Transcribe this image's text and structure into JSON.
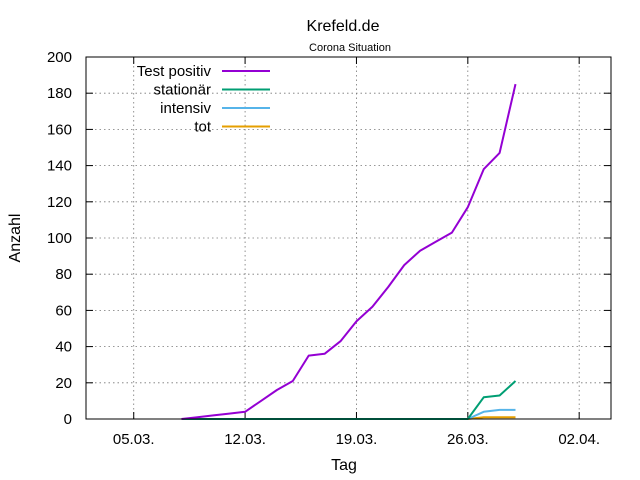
{
  "chart_data": {
    "type": "line",
    "title": "Krefeld.de",
    "subtitle": "Corona Situation",
    "xlabel": "Tag",
    "ylabel": "Anzahl",
    "ylim": [
      0,
      200
    ],
    "yticks": [
      0,
      20,
      40,
      60,
      80,
      100,
      120,
      140,
      160,
      180,
      200
    ],
    "xlim": [
      "2020-03-02",
      "2020-04-04"
    ],
    "xticks": [
      {
        "date": "2020-03-05",
        "label": "05.03."
      },
      {
        "date": "2020-03-12",
        "label": "12.03."
      },
      {
        "date": "2020-03-19",
        "label": "19.03."
      },
      {
        "date": "2020-03-26",
        "label": "26.03."
      },
      {
        "date": "2020-04-02",
        "label": "02.04."
      }
    ],
    "grid": true,
    "legend_position": "top-left",
    "series": [
      {
        "name": "Test positiv",
        "color": "#9400d3",
        "points": [
          {
            "x": "2020-03-08",
            "y": 0
          },
          {
            "x": "2020-03-09",
            "y": 1
          },
          {
            "x": "2020-03-10",
            "y": 2
          },
          {
            "x": "2020-03-11",
            "y": 3
          },
          {
            "x": "2020-03-12",
            "y": 4
          },
          {
            "x": "2020-03-13",
            "y": 10
          },
          {
            "x": "2020-03-14",
            "y": 16
          },
          {
            "x": "2020-03-15",
            "y": 21
          },
          {
            "x": "2020-03-16",
            "y": 35
          },
          {
            "x": "2020-03-17",
            "y": 36
          },
          {
            "x": "2020-03-18",
            "y": 43
          },
          {
            "x": "2020-03-19",
            "y": 54
          },
          {
            "x": "2020-03-20",
            "y": 62
          },
          {
            "x": "2020-03-21",
            "y": 73
          },
          {
            "x": "2020-03-22",
            "y": 85
          },
          {
            "x": "2020-03-23",
            "y": 93
          },
          {
            "x": "2020-03-24",
            "y": 98
          },
          {
            "x": "2020-03-25",
            "y": 103
          },
          {
            "x": "2020-03-26",
            "y": 117
          },
          {
            "x": "2020-03-27",
            "y": 138
          },
          {
            "x": "2020-03-28",
            "y": 147
          },
          {
            "x": "2020-03-29",
            "y": 185
          }
        ]
      },
      {
        "name": "stationär",
        "color": "#009e73",
        "points": [
          {
            "x": "2020-03-08",
            "y": 0
          },
          {
            "x": "2020-03-26",
            "y": 0
          },
          {
            "x": "2020-03-27",
            "y": 12
          },
          {
            "x": "2020-03-28",
            "y": 13
          },
          {
            "x": "2020-03-29",
            "y": 21
          }
        ]
      },
      {
        "name": "intensiv",
        "color": "#56b4e9",
        "points": [
          {
            "x": "2020-03-08",
            "y": 0
          },
          {
            "x": "2020-03-26",
            "y": 0
          },
          {
            "x": "2020-03-27",
            "y": 4
          },
          {
            "x": "2020-03-28",
            "y": 5
          },
          {
            "x": "2020-03-29",
            "y": 5
          }
        ]
      },
      {
        "name": "tot",
        "color": "#e69f00",
        "points": [
          {
            "x": "2020-03-08",
            "y": 0
          },
          {
            "x": "2020-03-26",
            "y": 0
          },
          {
            "x": "2020-03-27",
            "y": 1
          },
          {
            "x": "2020-03-29",
            "y": 1
          }
        ]
      }
    ]
  }
}
